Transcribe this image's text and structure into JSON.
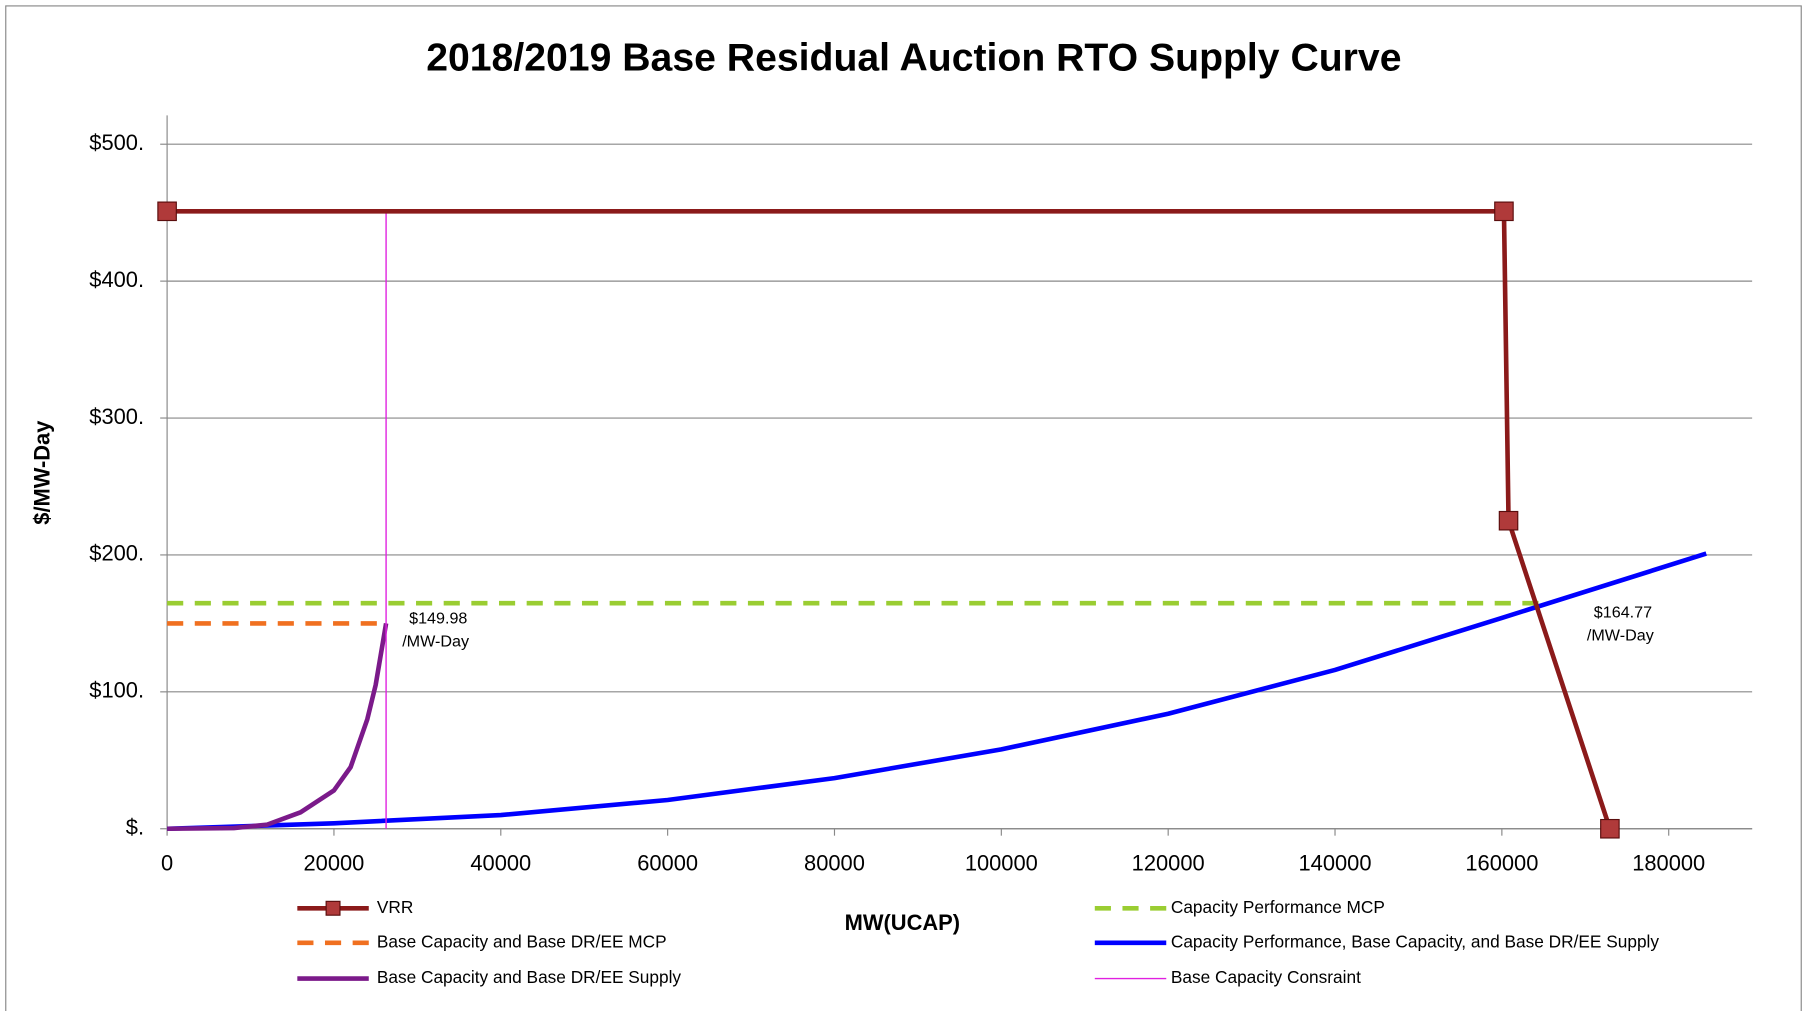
{
  "chart_data": {
    "type": "line",
    "title": "2018/2019 Base Residual Auction RTO Supply Curve",
    "x_label": "MW(UCAP)",
    "y_label": "$/MW-Day",
    "xlim": [
      0,
      190000
    ],
    "xticks": [
      0,
      20000,
      40000,
      60000,
      80000,
      100000,
      120000,
      140000,
      160000,
      180000
    ],
    "ylim": [
      0,
      520
    ],
    "yticks": [
      {
        "value": 0,
        "label": "$."
      },
      {
        "value": 100,
        "label": "$100."
      },
      {
        "value": 200,
        "label": "$200."
      },
      {
        "value": 300,
        "label": "$300."
      },
      {
        "value": 400,
        "label": "$400."
      },
      {
        "value": 500,
        "label": "$500."
      }
    ],
    "grid": true,
    "legend": "bottom",
    "series": [
      {
        "name": "VRR",
        "color": "#8b1a1a",
        "style": "solid",
        "marker": "square",
        "x": [
          0,
          160250,
          160800,
          172950
        ],
        "values": [
          451,
          451,
          225,
          0
        ]
      },
      {
        "name": "Base Capacity and Base DR/EE MCP",
        "color": "#f07020",
        "style": "dashed",
        "x": [
          0,
          26250
        ],
        "values": [
          149.98,
          149.98
        ]
      },
      {
        "name": "Base Capacity and Base DR/EE Supply",
        "color": "#7b1a8a",
        "style": "solid",
        "x": [
          0,
          8000,
          12000,
          16000,
          20000,
          22000,
          24000,
          25000,
          26250
        ],
        "values": [
          0,
          0.5,
          3,
          12,
          28,
          45,
          80,
          105,
          150
        ]
      },
      {
        "name": "Capacity Performance MCP",
        "color": "#9acd32",
        "style": "dashed",
        "x": [
          0,
          165000
        ],
        "values": [
          164.77,
          164.77
        ]
      },
      {
        "name": "Capacity Performance, Base Capacity, and Base DR/EE Supply",
        "color": "#0000ff",
        "style": "solid",
        "x": [
          0,
          20000,
          40000,
          60000,
          80000,
          100000,
          120000,
          140000,
          160000,
          184500
        ],
        "values": [
          0,
          4,
          10,
          21,
          37,
          58,
          84,
          116,
          154,
          201
        ]
      },
      {
        "name": "Base Capacity Consraint",
        "color": "#e020e0",
        "style": "thin",
        "x": [
          26250,
          26250
        ],
        "values": [
          0,
          451
        ]
      }
    ],
    "annotations": [
      {
        "lines": [
          "$149.98",
          "/MW-Day"
        ]
      },
      {
        "lines": [
          "$164.77",
          "/MW-Day"
        ]
      }
    ]
  }
}
